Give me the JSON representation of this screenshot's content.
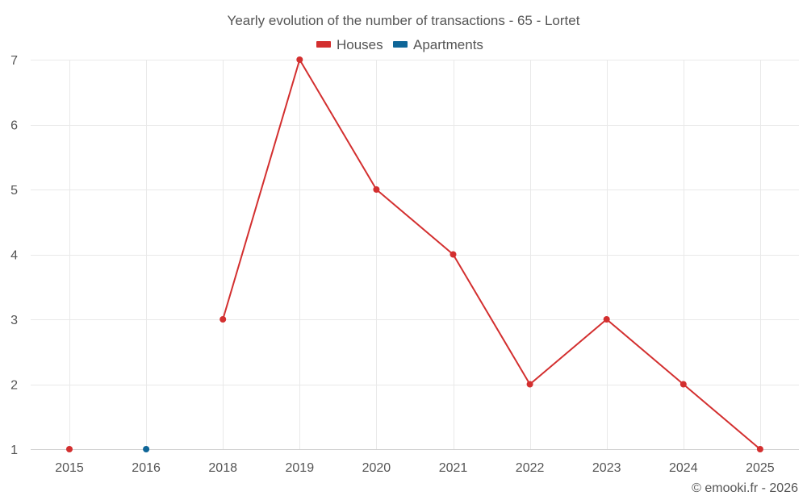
{
  "chart_data": {
    "type": "line",
    "title": "Yearly evolution of the number of transactions - 65 - Lortet",
    "categories": [
      "2015",
      "2016",
      "2018",
      "2019",
      "2020",
      "2021",
      "2022",
      "2023",
      "2024",
      "2025"
    ],
    "series": [
      {
        "name": "Houses",
        "color": "#d32f2f",
        "values": [
          1,
          null,
          3,
          7,
          5,
          4,
          2,
          3,
          2,
          1
        ]
      },
      {
        "name": "Apartments",
        "color": "#0f6698",
        "values": [
          null,
          1,
          null,
          null,
          null,
          null,
          null,
          null,
          null,
          null
        ]
      }
    ],
    "yticks": [
      1,
      2,
      3,
      4,
      5,
      6,
      7
    ],
    "ylim": [
      1,
      7
    ],
    "xlabel": "",
    "ylabel": "",
    "grid": true,
    "legend_position": "top-center",
    "credit": "© emooki.fr - 2026"
  }
}
